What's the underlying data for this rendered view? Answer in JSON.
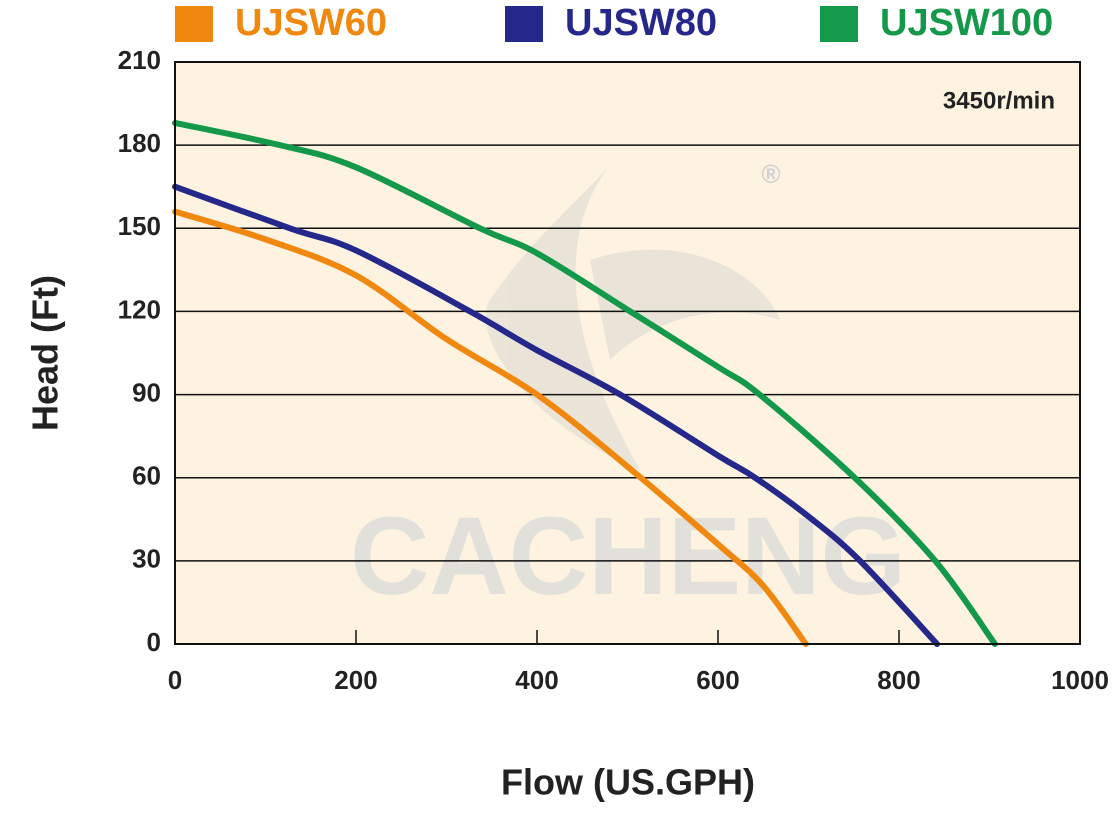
{
  "chart_data": {
    "type": "line",
    "x_label": "Flow (US.GPH)",
    "y_label": "Head (Ft)",
    "annotation": "3450r/min",
    "watermark": "CACHENG",
    "watermark_mark": "®",
    "xlim": [
      0,
      1000
    ],
    "xticks": [
      0,
      200,
      400,
      600,
      800,
      1000
    ],
    "ylim": [
      0,
      210
    ],
    "yticks": [
      0,
      30,
      60,
      90,
      120,
      150,
      180,
      210
    ],
    "grid": true,
    "legend": "top",
    "series": [
      {
        "name": "UJSW60",
        "color": "#f0870f",
        "x": [
          0,
          100,
          200,
          300,
          400,
          500,
          600,
          650,
          697
        ],
        "values": [
          156,
          146,
          133,
          110,
          90,
          64,
          36,
          21,
          0
        ]
      },
      {
        "name": "UJSW80",
        "color": "#25288a",
        "x": [
          0,
          127,
          200,
          326,
          400,
          492,
          600,
          641,
          700,
          757,
          842
        ],
        "values": [
          165,
          150,
          142,
          120,
          106,
          90,
          68,
          60,
          46,
          30,
          0
        ]
      },
      {
        "name": "UJSW100",
        "color": "#14984a",
        "x": [
          0,
          116,
          200,
          337,
          400,
          503,
          600,
          646,
          751,
          840,
          906
        ],
        "values": [
          188,
          180,
          172,
          150,
          141,
          120,
          100,
          90,
          60,
          30,
          0
        ]
      }
    ]
  }
}
